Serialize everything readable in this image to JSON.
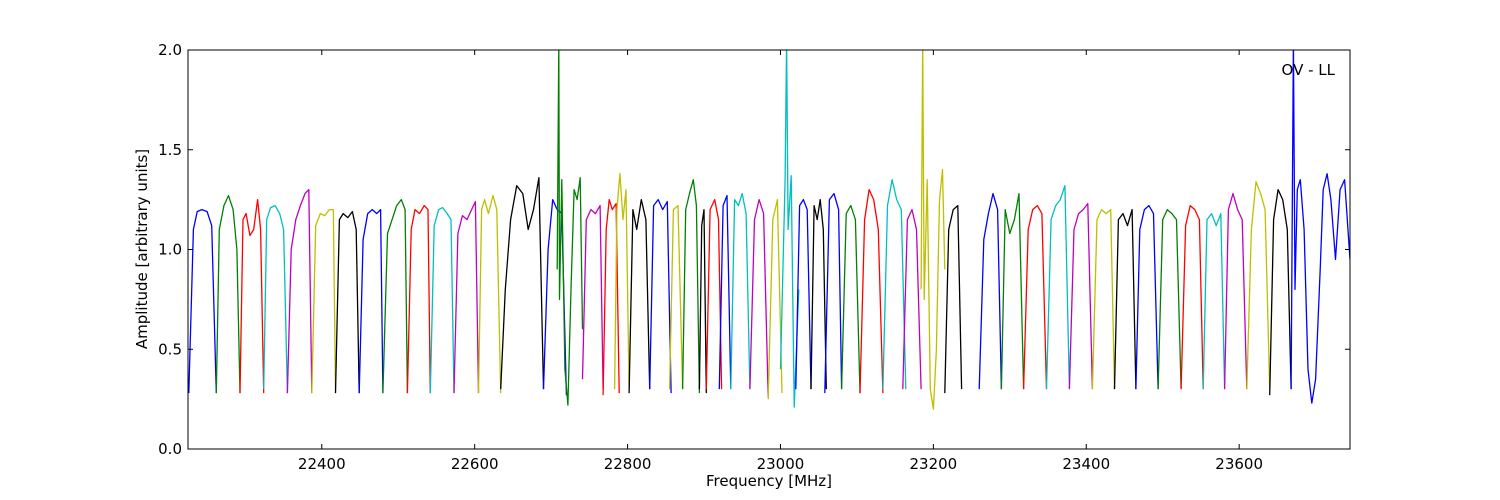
{
  "chart_data": {
    "type": "line",
    "title": "",
    "xlabel": "Frequency [MHz]",
    "ylabel": "Amplitude [arbitrary units]",
    "annotation": "OV - LL",
    "xlim": [
      22225,
      23745
    ],
    "ylim": [
      0.0,
      2.0
    ],
    "x_ticks": [
      22400,
      22600,
      22800,
      23000,
      23200,
      23400,
      23600
    ],
    "x_tick_labels": [
      "22400",
      "22600",
      "22800",
      "23000",
      "23200",
      "23400",
      "23600"
    ],
    "y_ticks": [
      0.0,
      0.5,
      1.0,
      1.5,
      2.0
    ],
    "y_tick_labels": [
      "0.0",
      "0.5",
      "1.0",
      "1.5",
      "2.0"
    ],
    "grid": false,
    "color_cycle": [
      "#0000ff",
      "#008000",
      "#ff0000",
      "#00bfbf",
      "#bf00bf",
      "#bfbf00",
      "#000000"
    ],
    "series": [
      {
        "color": "#0000ff",
        "x": [
          22226,
          22232,
          22237,
          22243,
          22250,
          22256,
          22262
        ],
        "y": [
          0.28,
          1.1,
          1.19,
          1.2,
          1.19,
          1.12,
          0.28
        ]
      },
      {
        "color": "#008000",
        "x": [
          22262,
          22266,
          22272,
          22278,
          22284,
          22289,
          22293
        ],
        "y": [
          0.28,
          1.1,
          1.22,
          1.27,
          1.2,
          1.0,
          0.28
        ]
      },
      {
        "color": "#ff0000",
        "x": [
          22293,
          22297,
          22301,
          22306,
          22311,
          22316,
          22320,
          22324
        ],
        "y": [
          0.28,
          1.15,
          1.18,
          1.07,
          1.1,
          1.25,
          1.1,
          0.28
        ]
      },
      {
        "color": "#00bfbf",
        "x": [
          22324,
          22328,
          22333,
          22339,
          22345,
          22350,
          22355
        ],
        "y": [
          0.3,
          1.15,
          1.21,
          1.22,
          1.18,
          1.1,
          0.28
        ]
      },
      {
        "color": "#bf00bf",
        "x": [
          22355,
          22360,
          22366,
          22372,
          22378,
          22383,
          22387
        ],
        "y": [
          0.28,
          1.0,
          1.15,
          1.22,
          1.28,
          1.3,
          0.28
        ]
      },
      {
        "color": "#bfbf00",
        "x": [
          22387,
          22392,
          22398,
          22404,
          22410,
          22415,
          22418
        ],
        "y": [
          0.28,
          1.12,
          1.18,
          1.17,
          1.2,
          1.2,
          0.3
        ]
      },
      {
        "color": "#000000",
        "x": [
          22418,
          22423,
          22428,
          22434,
          22440,
          22445,
          22449
        ],
        "y": [
          0.28,
          1.15,
          1.18,
          1.16,
          1.19,
          1.1,
          0.28
        ]
      },
      {
        "color": "#0000ff",
        "x": [
          22449,
          22454,
          22460,
          22466,
          22472,
          22477,
          22480
        ],
        "y": [
          0.28,
          1.05,
          1.18,
          1.2,
          1.18,
          1.2,
          0.28
        ]
      },
      {
        "color": "#008000",
        "x": [
          22480,
          22486,
          22492,
          22498,
          22504,
          22509,
          22512
        ],
        "y": [
          0.28,
          1.08,
          1.15,
          1.22,
          1.25,
          1.2,
          0.28
        ]
      },
      {
        "color": "#ff0000",
        "x": [
          22512,
          22517,
          22522,
          22528,
          22534,
          22539,
          22542
        ],
        "y": [
          0.28,
          1.1,
          1.2,
          1.18,
          1.22,
          1.2,
          0.28
        ]
      },
      {
        "color": "#00bfbf",
        "x": [
          22542,
          22547,
          22553,
          22558,
          22564,
          22569,
          22573
        ],
        "y": [
          0.28,
          1.12,
          1.2,
          1.21,
          1.18,
          1.15,
          0.28
        ]
      },
      {
        "color": "#bf00bf",
        "x": [
          22573,
          22578,
          22584,
          22590,
          22596,
          22601,
          22605
        ],
        "y": [
          0.28,
          1.08,
          1.17,
          1.15,
          1.2,
          1.24,
          0.28
        ]
      },
      {
        "color": "#bfbf00",
        "x": [
          22605,
          22609,
          22613,
          22618,
          22624,
          22629,
          22634
        ],
        "y": [
          0.28,
          1.2,
          1.25,
          1.18,
          1.27,
          1.2,
          0.28
        ]
      },
      {
        "color": "#000000",
        "x": [
          22634,
          22640,
          22647,
          22655,
          22663,
          22670,
          22677,
          22684,
          22690
        ],
        "y": [
          0.3,
          0.8,
          1.15,
          1.32,
          1.28,
          1.1,
          1.2,
          1.36,
          0.3
        ]
      },
      {
        "color": "#0000ff",
        "x": [
          22690,
          22696,
          22702,
          22708,
          22714,
          22720
        ],
        "y": [
          0.3,
          1.0,
          1.25,
          1.2,
          1.18,
          0.27
        ]
      },
      {
        "color": "#008000",
        "x": [
          22708,
          22710,
          22711,
          22714,
          22718,
          22722,
          22726,
          22730,
          22734,
          22738,
          22741
        ],
        "y": [
          0.9,
          2.05,
          0.75,
          1.35,
          0.4,
          0.22,
          0.8,
          1.3,
          1.25,
          1.36,
          0.6
        ]
      },
      {
        "color": "#bf00bf",
        "x": [
          22741,
          22746,
          22752,
          22758,
          22764,
          22768
        ],
        "y": [
          0.35,
          1.15,
          1.2,
          1.18,
          1.22,
          0.3
        ]
      },
      {
        "color": "#ff0000",
        "x": [
          22768,
          22772,
          22776,
          22780,
          22785,
          22789
        ],
        "y": [
          0.27,
          1.1,
          1.25,
          1.2,
          1.23,
          0.28
        ]
      },
      {
        "color": "#bfbf00",
        "x": [
          22783,
          22786,
          22790,
          22794,
          22798,
          22802
        ],
        "y": [
          0.3,
          1.2,
          1.38,
          1.15,
          1.3,
          0.3
        ]
      },
      {
        "color": "#000000",
        "x": [
          22802,
          22807,
          22812,
          22818,
          22824,
          22829
        ],
        "y": [
          0.28,
          1.2,
          1.1,
          1.25,
          1.15,
          0.3
        ]
      },
      {
        "color": "#0000ff",
        "x": [
          22829,
          22834,
          22840,
          22846,
          22852,
          22857
        ],
        "y": [
          0.3,
          1.22,
          1.25,
          1.2,
          1.24,
          0.28
        ]
      },
      {
        "color": "#bfbf00",
        "x": [
          22855,
          22860,
          22866,
          22872
        ],
        "y": [
          0.3,
          1.2,
          1.22,
          0.3
        ]
      },
      {
        "color": "#008000",
        "x": [
          22872,
          22876,
          22881,
          22886,
          22890,
          22894
        ],
        "y": [
          0.3,
          1.2,
          1.28,
          1.35,
          1.22,
          0.28
        ]
      },
      {
        "color": "#000000",
        "x": [
          22894,
          22897,
          22900,
          22903
        ],
        "y": [
          0.3,
          1.12,
          1.2,
          0.28
        ]
      },
      {
        "color": "#ff0000",
        "x": [
          22903,
          22908,
          22914,
          22919,
          22923
        ],
        "y": [
          0.3,
          1.2,
          1.25,
          1.15,
          0.3
        ]
      },
      {
        "color": "#0000ff",
        "x": [
          22920,
          22925,
          22930,
          22935
        ],
        "y": [
          0.3,
          1.22,
          1.27,
          0.3
        ]
      },
      {
        "color": "#00bfbf",
        "x": [
          22935,
          22940,
          22945,
          22950,
          22955,
          22960
        ],
        "y": [
          0.3,
          1.25,
          1.22,
          1.28,
          1.18,
          0.3
        ]
      },
      {
        "color": "#bf00bf",
        "x": [
          22960,
          22966,
          22972,
          22978,
          22984
        ],
        "y": [
          0.3,
          1.15,
          1.25,
          1.18,
          0.26
        ]
      },
      {
        "color": "#bfbf00",
        "x": [
          22984,
          22990,
          22996,
          23002
        ],
        "y": [
          0.25,
          1.15,
          1.25,
          0.28
        ]
      },
      {
        "color": "#00bfbf",
        "x": [
          23000,
          23006,
          23008,
          23010,
          23014,
          23018,
          23024
        ],
        "y": [
          0.4,
          1.35,
          2.05,
          1.1,
          1.37,
          0.21,
          0.8
        ]
      },
      {
        "color": "#0000ff",
        "x": [
          23020,
          23025,
          23030,
          23035,
          23040
        ],
        "y": [
          0.3,
          1.22,
          1.25,
          1.2,
          0.3
        ]
      },
      {
        "color": "#000000",
        "x": [
          23040,
          23044,
          23048,
          23052,
          23056,
          23060
        ],
        "y": [
          0.3,
          1.22,
          1.15,
          1.25,
          1.1,
          0.3
        ]
      },
      {
        "color": "#0000ff",
        "x": [
          23058,
          23064,
          23070,
          23076,
          23080
        ],
        "y": [
          0.28,
          1.25,
          1.28,
          1.2,
          0.3
        ]
      },
      {
        "color": "#008000",
        "x": [
          23080,
          23086,
          23092,
          23098,
          23104
        ],
        "y": [
          0.3,
          1.18,
          1.22,
          1.15,
          0.28
        ]
      },
      {
        "color": "#ff0000",
        "x": [
          23104,
          23110,
          23116,
          23122,
          23128,
          23134
        ],
        "y": [
          0.28,
          1.15,
          1.3,
          1.25,
          1.1,
          0.28
        ]
      },
      {
        "color": "#00bfbf",
        "x": [
          23134,
          23140,
          23146,
          23152,
          23158,
          23164
        ],
        "y": [
          0.3,
          1.22,
          1.35,
          1.25,
          1.2,
          0.3
        ]
      },
      {
        "color": "#bf00bf",
        "x": [
          23160,
          23166,
          23172,
          23178,
          23184
        ],
        "y": [
          0.3,
          1.15,
          1.2,
          1.1,
          0.3
        ]
      },
      {
        "color": "#bfbf00",
        "x": [
          23184,
          23186,
          23188,
          23192,
          23196,
          23200,
          23204,
          23208,
          23212,
          23215
        ],
        "y": [
          0.8,
          2.05,
          0.75,
          1.35,
          0.3,
          0.2,
          0.5,
          1.25,
          1.4,
          0.9
        ]
      },
      {
        "color": "#000000",
        "x": [
          23215,
          23220,
          23226,
          23232,
          23237
        ],
        "y": [
          0.28,
          1.1,
          1.2,
          1.22,
          0.3
        ]
      },
      {
        "color": "#0000ff",
        "x": [
          23260,
          23266,
          23272,
          23278,
          23284,
          23289
        ],
        "y": [
          0.3,
          1.05,
          1.18,
          1.28,
          1.2,
          0.3
        ]
      },
      {
        "color": "#008000",
        "x": [
          23289,
          23294,
          23300,
          23306,
          23312,
          23318
        ],
        "y": [
          0.3,
          1.2,
          1.08,
          1.15,
          1.28,
          0.3
        ]
      },
      {
        "color": "#ff0000",
        "x": [
          23318,
          23324,
          23330,
          23336,
          23342,
          23348
        ],
        "y": [
          0.3,
          1.1,
          1.2,
          1.22,
          1.18,
          0.3
        ]
      },
      {
        "color": "#00bfbf",
        "x": [
          23348,
          23354,
          23360,
          23366,
          23372,
          23378
        ],
        "y": [
          0.3,
          1.15,
          1.22,
          1.25,
          1.32,
          0.3
        ]
      },
      {
        "color": "#bf00bf",
        "x": [
          23378,
          23384,
          23390,
          23396,
          23402,
          23408
        ],
        "y": [
          0.3,
          1.1,
          1.18,
          1.2,
          1.23,
          0.3
        ]
      },
      {
        "color": "#bfbf00",
        "x": [
          23408,
          23414,
          23420,
          23426,
          23432,
          23437
        ],
        "y": [
          0.3,
          1.15,
          1.2,
          1.18,
          1.2,
          0.3
        ]
      },
      {
        "color": "#000000",
        "x": [
          23437,
          23442,
          23448,
          23454,
          23460,
          23465
        ],
        "y": [
          0.3,
          1.15,
          1.18,
          1.12,
          1.2,
          0.3
        ]
      },
      {
        "color": "#0000ff",
        "x": [
          23465,
          23470,
          23476,
          23482,
          23488,
          23494
        ],
        "y": [
          0.3,
          1.1,
          1.2,
          1.22,
          1.18,
          0.3
        ]
      },
      {
        "color": "#008000",
        "x": [
          23494,
          23500,
          23506,
          23512,
          23518,
          23524
        ],
        "y": [
          0.3,
          1.15,
          1.2,
          1.18,
          1.15,
          0.3
        ]
      },
      {
        "color": "#ff0000",
        "x": [
          23524,
          23530,
          23536,
          23542,
          23548,
          23553
        ],
        "y": [
          0.3,
          1.12,
          1.22,
          1.2,
          1.15,
          0.3
        ]
      },
      {
        "color": "#00bfbf",
        "x": [
          23553,
          23558,
          23564,
          23570,
          23576,
          23581
        ],
        "y": [
          0.3,
          1.15,
          1.18,
          1.12,
          1.18,
          0.3
        ]
      },
      {
        "color": "#bf00bf",
        "x": [
          23581,
          23586,
          23592,
          23598,
          23604,
          23610
        ],
        "y": [
          0.3,
          1.2,
          1.28,
          1.2,
          1.15,
          0.3
        ]
      },
      {
        "color": "#bfbf00",
        "x": [
          23610,
          23616,
          23622,
          23628,
          23634,
          23640
        ],
        "y": [
          0.3,
          1.1,
          1.34,
          1.28,
          1.2,
          0.3
        ]
      },
      {
        "color": "#000000",
        "x": [
          23640,
          23645,
          23651,
          23657,
          23663,
          23668
        ],
        "y": [
          0.27,
          1.15,
          1.3,
          1.25,
          1.1,
          0.3
        ]
      },
      {
        "color": "#0000ff",
        "x": [
          23668,
          23671,
          23673,
          23676,
          23680,
          23685,
          23690,
          23695,
          23700,
          23706,
          23710,
          23715,
          23720,
          23726,
          23732,
          23738,
          23745
        ],
        "y": [
          0.3,
          2.05,
          0.8,
          1.3,
          1.35,
          1.1,
          0.4,
          0.23,
          0.35,
          0.9,
          1.3,
          1.38,
          1.25,
          0.95,
          1.3,
          1.35,
          0.95
        ]
      }
    ]
  }
}
